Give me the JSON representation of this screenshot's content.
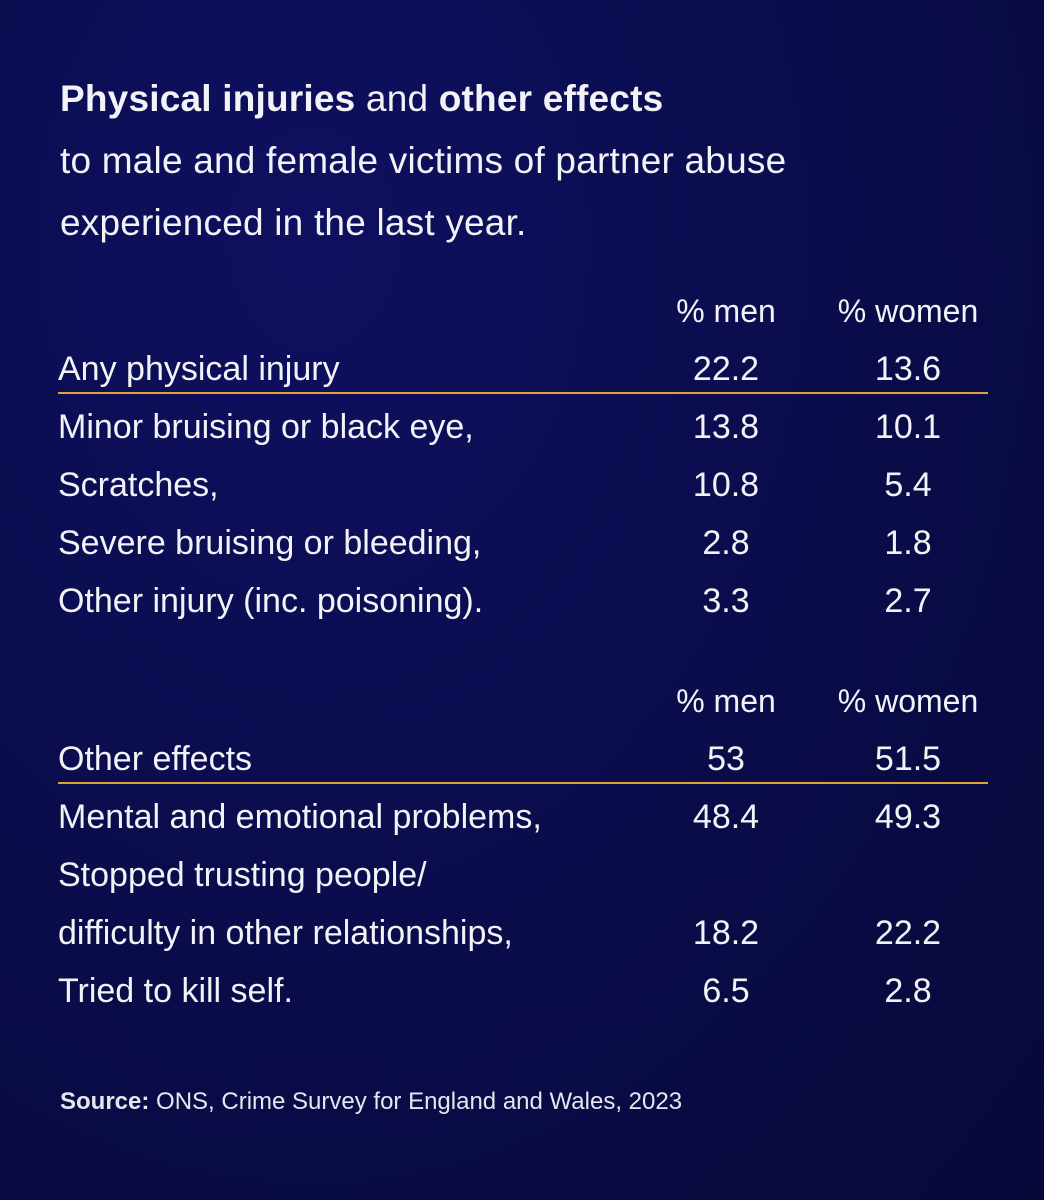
{
  "title": {
    "bold1": "Physical injuries",
    "and": " and ",
    "bold2": "other effects",
    "line2": "to male and female victims of partner abuse",
    "line3": "experienced in the last year."
  },
  "chart_data": [
    {
      "type": "table",
      "columns": [
        "% men",
        "% women"
      ],
      "total": {
        "label": "Any physical injury",
        "men": "22.2",
        "women": "13.6"
      },
      "rows": [
        {
          "label": "Minor bruising or black eye,",
          "men": "13.8",
          "women": "10.1"
        },
        {
          "label": "Scratches,",
          "men": "10.8",
          "women": "5.4"
        },
        {
          "label": "Severe bruising or bleeding,",
          "men": "2.8",
          "women": "1.8"
        },
        {
          "label": "Other injury (inc. poisoning).",
          "men": "3.3",
          "women": "2.7"
        }
      ]
    },
    {
      "type": "table",
      "columns": [
        "% men",
        "% women"
      ],
      "total": {
        "label": "Other effects",
        "men": "53",
        "women": "51.5"
      },
      "rows": [
        {
          "label": "Mental and emotional problems,",
          "men": "48.4",
          "women": "49.3"
        },
        {
          "label": "Stopped trusting people/",
          "men": "",
          "women": ""
        },
        {
          "label": "difficulty in other relationships,",
          "men": "18.2",
          "women": "22.2"
        },
        {
          "label": "Tried to kill self.",
          "men": "6.5",
          "women": "2.8"
        }
      ]
    }
  ],
  "source": {
    "label": "Source:",
    "text": " ONS, Crime Survey for England and Wales, 2023"
  },
  "colors": {
    "background": "#0a0c4a",
    "underline": "#e0a235",
    "text": "#f2f2f7"
  }
}
